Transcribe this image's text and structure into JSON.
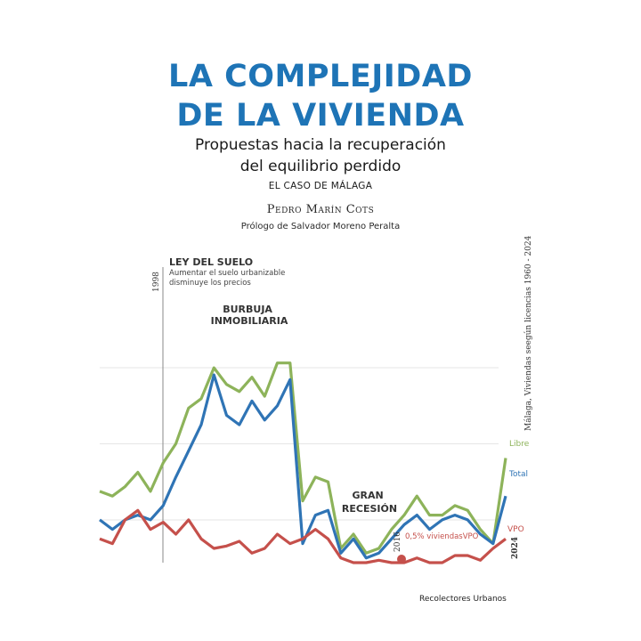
{
  "cover": {
    "title_line1": "LA COMPLEJIDAD",
    "title_line2": "DE LA VIVIENDA",
    "subtitle_line1": "Propuestas hacia la recuperación",
    "subtitle_line2": "del equilibrio perdido",
    "case": "EL CASO DE MÁLAGA",
    "author": "Pedro Marín Cots",
    "prologue": "Prólogo de Salvador Moreno Peralta",
    "publisher": "Recolectores Urbanos",
    "colors": {
      "title": "#1e74b6",
      "libre": "#8db35a",
      "total": "#2f74b5",
      "vpo": "#c5504b"
    }
  },
  "chart_data": {
    "type": "line",
    "title": "Málaga, Viviendas seegún licencias 1960 - 2024",
    "x": [
      1960,
      1962,
      1964,
      1966,
      1968,
      1970,
      1972,
      1974,
      1976,
      1978,
      1980,
      1982,
      1984,
      1986,
      1988,
      1990,
      1992,
      1994,
      1996,
      1998,
      2000,
      2002,
      2004,
      2006,
      2008,
      2010,
      2012,
      2014,
      2016,
      2018,
      2020,
      2022,
      2024
    ],
    "ylim": [
      0,
      100
    ],
    "series": [
      {
        "name": "Libre",
        "values": [
          30,
          28,
          32,
          38,
          30,
          42,
          50,
          65,
          69,
          82,
          75,
          72,
          78,
          70,
          84,
          84,
          26,
          36,
          34,
          6,
          12,
          4,
          6,
          14,
          20,
          28,
          20,
          20,
          24,
          22,
          14,
          8,
          44
        ]
      },
      {
        "name": "Total",
        "values": [
          18,
          14,
          18,
          20,
          18,
          24,
          36,
          47,
          58,
          79,
          62,
          58,
          68,
          60,
          66,
          77,
          8,
          20,
          22,
          4,
          10,
          2,
          4,
          10,
          16,
          20,
          14,
          18,
          20,
          18,
          12,
          8,
          28
        ]
      },
      {
        "name": "VPO",
        "values": [
          10,
          8,
          18,
          22,
          14,
          17,
          12,
          18,
          10,
          6,
          7,
          9,
          4,
          6,
          12,
          8,
          10,
          14,
          10,
          2,
          0,
          0,
          1,
          0,
          0,
          2,
          0,
          0,
          3,
          3,
          1,
          6,
          10
        ]
      }
    ],
    "annotations": [
      {
        "label": "LEY DEL SUELO",
        "text": "Aumentar el suelo urbanizable\ndisminuye los precios",
        "year": "1998"
      },
      {
        "label": "BURBUJA\nINMOBILIARIA"
      },
      {
        "label": "GRAN\nRECESIÓN"
      },
      {
        "label": "0,5% viviendasVPO",
        "year": "2016"
      },
      {
        "year": "2024"
      }
    ]
  }
}
